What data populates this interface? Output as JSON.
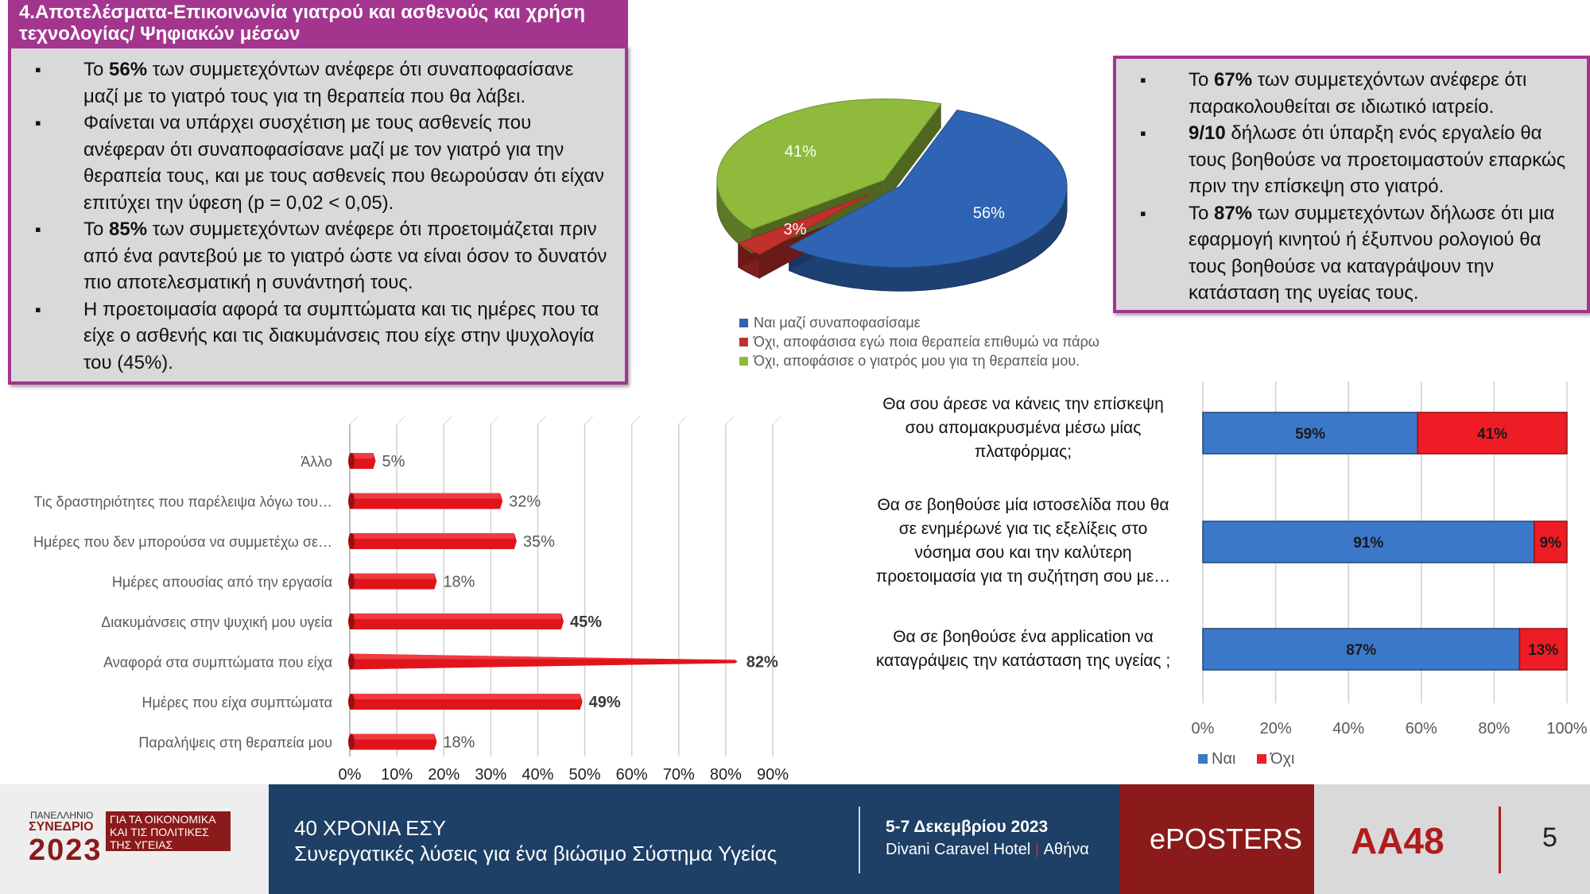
{
  "header": {
    "title_line1": "4.Αποτελέσματα-Επικοινωνία γιατρού και ασθενούς και χρήση",
    "title_line2": "τεχνολογίας/ Ψηφιακών μέσων"
  },
  "left_box": {
    "b1_pre": "Το ",
    "b1_bold": "56%",
    "b1_post": " των συμμετεχόντων ανέφερε ότι συναποφασίσανε μαζί με το γιατρό τους για τη θεραπεία που θα λάβει.",
    "b2": "Φαίνεται να υπάρχει συσχέτιση με τους ασθενείς που ανέφεραν ότι συναποφασίσανε μαζί με τον γιατρό για την θεραπεία τους, και με τους ασθενείς που θεωρούσαν ότι είχαν επιτύχει την ύφεση (p = 0,02 < 0,05).",
    "b3_pre": "Το ",
    "b3_bold": "85%",
    "b3_post": " των συμμετεχόντων ανέφερε ότι προετοιμάζεται πριν από ένα ραντεβού με το γιατρό ώστε να είναι όσον το δυνατόν πιο αποτελεσματική η συνάντησή τους.",
    "b4": "Η προετοιμασία αφορά τα συμπτώματα και τις ημέρες που τα είχε ο ασθενής και τις διακυμάνσεις που είχε στην ψυχολογία του (45%)."
  },
  "right_box": {
    "b1_pre": "Το ",
    "b1_bold": "67%",
    "b1_post": " των συμμετεχόντων  ανέφερε ότι παρακολουθείται σε ιδιωτικό ιατρείο.",
    "b2_bold": "9/10",
    "b2_post": " δήλωσε ότι ύπαρξη ενός εργαλείο θα τους βοηθούσε να προετοιμαστούν επαρκώς πριν την επίσκεψη στο γιατρό.",
    "b3_pre": "Το ",
    "b3_bold": "87%",
    "b3_post": " των συμμετεχόντων  δήλωσε ότι μια εφαρμογή κινητού ή έξυπνου ρολογιού θα τους βοηθούσε να καταγράψουν την κατάσταση της υγείας τους."
  },
  "chart_data": [
    {
      "type": "pie",
      "categories": [
        "Ναι μαζί συναποφασίσαμε",
        "Όχι, αποφάσισα εγώ ποια θεραπεία επιθυμώ να πάρω",
        "Όχι, αποφάσισε ο γιατρός μου για τη θεραπεία μου."
      ],
      "values": [
        56,
        3,
        41
      ],
      "labels": [
        "56%",
        "3%",
        "41%"
      ],
      "colors": [
        "#2e64b3",
        "#c0302c",
        "#8fba3c"
      ],
      "legend_position": "bottom"
    },
    {
      "type": "bar",
      "orientation": "horizontal",
      "categories": [
        "Άλλο",
        "Τις δραστηριότητες που παρέλειψα λόγω του…",
        "Ημέρες που δεν μπορούσα να συμμετέχω σε…",
        "Ημέρες απουσίας από την εργασία",
        "Διακυμάνσεις στην ψυχική μου υγεία",
        "Αναφορά στα συμπτώματα που είχα",
        "Ημέρες που είχα συμπτώματα",
        "Παραλήψεις στη θεραπεία μου"
      ],
      "values": [
        5,
        32,
        35,
        18,
        45,
        82,
        49,
        18
      ],
      "value_labels": [
        "5%",
        "32%",
        "35%",
        "18%",
        "45%",
        "82%",
        "49%",
        "18%"
      ],
      "xlim": [
        0,
        90
      ],
      "ticks": [
        "0%",
        "10%",
        "20%",
        "30%",
        "40%",
        "50%",
        "60%",
        "70%",
        "80%",
        "90%"
      ],
      "color": "#e0141b"
    },
    {
      "type": "bar",
      "orientation": "horizontal",
      "stacked": true,
      "categories": [
        [
          "Θα σου άρεσε να κάνεις την επίσκεψη",
          "σου απομακρυσμένα μέσω μίας",
          "πλατφόρμας;"
        ],
        [
          "Θα σε βοηθούσε μία ιστοσελίδα που θα",
          "σε ενημέρωνέ για τις εξελίξεις στο",
          "νόσημα σου και την καλύτερη",
          "προετοιμασία για τη συζήτηση σου με…"
        ],
        [
          "Θα σε βοηθούσε ένα application να",
          "καταγράψεις την κατάσταση της υγείας ;"
        ]
      ],
      "series": [
        {
          "name": "Ναι",
          "values": [
            59,
            91,
            87
          ],
          "labels": [
            "59%",
            "91%",
            "87%"
          ],
          "color": "#3b78c9"
        },
        {
          "name": "Όχι",
          "values": [
            41,
            9,
            13
          ],
          "labels": [
            "41%",
            "9%",
            "13%"
          ],
          "color": "#ee1c24"
        }
      ],
      "xlim": [
        0,
        100
      ],
      "ticks": [
        "0%",
        "20%",
        "40%",
        "60%",
        "80%",
        "100%"
      ],
      "legend_position": "bottom"
    }
  ],
  "footer": {
    "org_line1": "ΠΑΝΕΛΛΗΝΙΟ",
    "org_line2": "ΣΥΝΕΔΡΙΟ",
    "org_year": "2023",
    "org_sub1": "ΓΙΑ ΤΑ ΟΙΚΟΝΟΜΙΚΑ",
    "org_sub2": "ΚΑΙ ΤΙΣ ΠΟΛΙΤΙΚΕΣ",
    "org_sub3": "ΤΗΣ ΥΓΕΙΑΣ",
    "event_title": "40 ΧΡΟΝΙΑ ΕΣΥ",
    "event_subtitle": "Συνεργατικές λύσεις για ένα βιώσιμο Σύστημα Υγείας",
    "dates": "5-7 Δεκεμβρίου 2023",
    "venue": "Divani Caravel Hotel",
    "city": "Αθήνα",
    "eposters": "ePOSTERS",
    "code": "AA48",
    "page": "5"
  }
}
